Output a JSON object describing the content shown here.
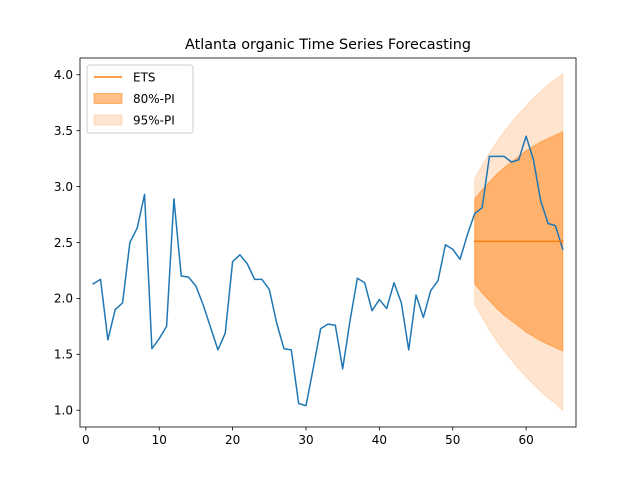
{
  "chart_data": {
    "type": "line",
    "title": "Atlanta organic Time Series Forecasting",
    "xlabel": "",
    "ylabel": "",
    "xlim": [
      -0.8,
      66.8
    ],
    "ylim": [
      0.85,
      4.15
    ],
    "xticks": [
      0,
      10,
      20,
      30,
      40,
      50,
      60
    ],
    "yticks": [
      1.0,
      1.5,
      2.0,
      2.5,
      3.0,
      3.5,
      4.0
    ],
    "xtick_labels": [
      "0",
      "10",
      "20",
      "30",
      "40",
      "50",
      "60"
    ],
    "ytick_labels": [
      "1.0",
      "1.5",
      "2.0",
      "2.5",
      "3.0",
      "3.5",
      "4.0"
    ],
    "grid": false,
    "legend": {
      "placement": "upper-left",
      "entries": [
        {
          "label": "ETS",
          "kind": "line",
          "color": "#ff7f0e"
        },
        {
          "label": "80%-PI",
          "kind": "patch",
          "color": "#ff7f0e",
          "alpha": 0.5
        },
        {
          "label": "95%-PI",
          "kind": "patch",
          "color": "#ff7f0e",
          "alpha": 0.2
        }
      ]
    },
    "series": [
      {
        "color": "#1f77b4",
        "x": [
          1,
          2,
          3,
          4,
          5,
          6,
          7,
          8,
          9,
          10,
          11,
          12,
          13,
          14,
          15,
          16,
          17,
          18,
          19,
          20,
          21,
          22,
          23,
          24,
          25,
          26,
          27,
          28,
          29,
          30,
          31,
          32,
          33,
          34,
          35,
          36,
          37,
          38,
          39,
          40,
          41,
          42,
          43,
          44,
          45,
          46,
          47,
          48,
          49,
          50,
          51,
          52,
          53,
          54,
          55,
          56,
          57,
          58,
          59,
          60,
          61,
          62,
          63,
          64,
          65
        ],
        "values": [
          2.13,
          2.17,
          1.63,
          1.9,
          1.96,
          2.5,
          2.63,
          2.93,
          1.55,
          1.64,
          1.75,
          2.89,
          2.2,
          2.19,
          2.11,
          1.94,
          1.74,
          1.54,
          1.69,
          2.33,
          2.39,
          2.31,
          2.17,
          2.17,
          2.08,
          1.78,
          1.55,
          1.54,
          1.06,
          1.04,
          1.38,
          1.73,
          1.77,
          1.76,
          1.37,
          1.8,
          2.18,
          2.14,
          1.89,
          1.99,
          1.91,
          2.14,
          1.96,
          1.54,
          2.03,
          1.83,
          2.07,
          2.16,
          2.48,
          2.44,
          2.35,
          2.57,
          2.76,
          2.81,
          3.27,
          3.27,
          3.27,
          3.22,
          3.24,
          3.45,
          3.24,
          2.87,
          2.67,
          2.65,
          2.44
        ]
      },
      {
        "name": "ETS",
        "color": "#ff7f0e",
        "x": [
          53,
          65
        ],
        "values": [
          2.51,
          2.51
        ]
      }
    ],
    "intervals": [
      {
        "name": "95%-PI",
        "color": "#ff7f0e",
        "alpha": 0.2,
        "x": [
          53,
          54,
          55,
          56,
          57,
          58,
          59,
          60,
          61,
          62,
          63,
          64,
          65
        ],
        "lower": [
          1.95,
          1.83,
          1.72,
          1.62,
          1.53,
          1.45,
          1.37,
          1.3,
          1.23,
          1.17,
          1.11,
          1.06,
          1.0
        ],
        "upper": [
          3.07,
          3.19,
          3.3,
          3.4,
          3.49,
          3.57,
          3.65,
          3.72,
          3.79,
          3.85,
          3.91,
          3.96,
          4.01
        ]
      },
      {
        "name": "80%-PI",
        "color": "#ff7f0e",
        "alpha": 0.5,
        "x": [
          53,
          54,
          55,
          56,
          57,
          58,
          59,
          60,
          61,
          62,
          63,
          64,
          65
        ],
        "lower": [
          2.13,
          2.05,
          1.98,
          1.91,
          1.85,
          1.8,
          1.75,
          1.7,
          1.66,
          1.62,
          1.59,
          1.56,
          1.53
        ],
        "upper": [
          2.89,
          2.97,
          3.04,
          3.11,
          3.17,
          3.22,
          3.27,
          3.32,
          3.36,
          3.4,
          3.43,
          3.46,
          3.49
        ]
      }
    ]
  }
}
